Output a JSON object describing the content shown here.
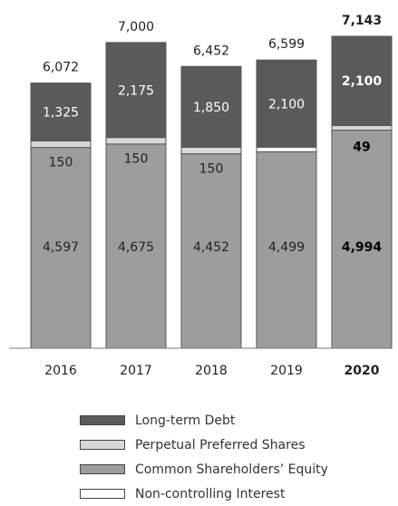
{
  "chart_data": {
    "type": "bar",
    "stacked": true,
    "title": "",
    "xlabel": "",
    "ylabel": "",
    "ylim": [
      0,
      7143
    ],
    "grid": false,
    "legend_position": "bottom",
    "categories": [
      "2016",
      "2017",
      "2018",
      "2019",
      "2020"
    ],
    "highlight_category": "2020",
    "totals": [
      6072,
      7000,
      6452,
      6599,
      7143
    ],
    "series": [
      {
        "name": "Common Shareholders' Equity",
        "color": "#9d9d9d",
        "values": [
          4597,
          4675,
          4452,
          4499,
          4994
        ],
        "labels": [
          "4,597",
          "4,675",
          "4,452",
          "4,499",
          "4,994"
        ]
      },
      {
        "name": "Non-controlling Interest",
        "color": "#ffffff",
        "values": [
          0,
          0,
          0,
          0,
          0
        ],
        "labels": [
          "",
          "",
          "",
          "",
          ""
        ]
      },
      {
        "name": "Perpetual Preferred Shares",
        "color": "#d8d8d8",
        "values": [
          150,
          150,
          150,
          0,
          49
        ],
        "labels": [
          "150",
          "150",
          "150",
          "",
          "49"
        ]
      },
      {
        "name": "Long-term Debt",
        "color": "#5a5a5a",
        "values": [
          1325,
          2175,
          1850,
          2100,
          2100
        ],
        "labels": [
          "1,325",
          "2,175",
          "1,850",
          "2,100",
          "2,100"
        ]
      }
    ],
    "total_labels": [
      "6,072",
      "7,000",
      "6,452",
      "6,599",
      "7,143"
    ]
  },
  "legend": [
    {
      "label": "Long-term Debt",
      "color": "#5a5a5a"
    },
    {
      "label": "Perpetual Preferred Shares",
      "color": "#d8d8d8"
    },
    {
      "label": "Common Shareholders’ Equity",
      "color": "#9d9d9d"
    },
    {
      "label": "Non-controlling Interest",
      "color": "#ffffff"
    }
  ]
}
